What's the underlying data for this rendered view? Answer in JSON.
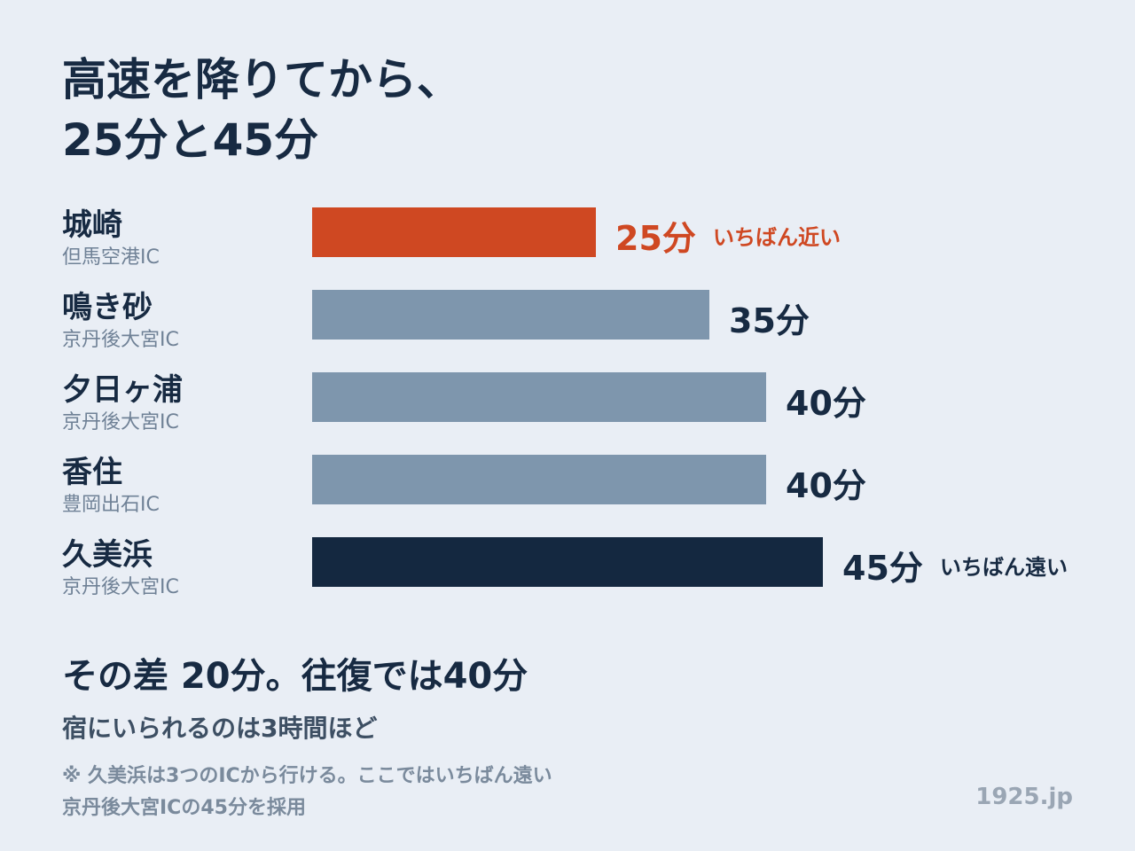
{
  "title": {
    "line1": "高速を降りてから、",
    "line2": "25分と45分"
  },
  "chart_data": {
    "type": "bar",
    "orientation": "horizontal",
    "categories": [
      "城崎",
      "鳴き砂",
      "夕日ヶ浦",
      "香住",
      "久美浜"
    ],
    "sublabels": [
      "但馬空港IC",
      "京丹後大宮IC",
      "京丹後大宮IC",
      "豊岡出石IC",
      "京丹後大宮IC"
    ],
    "values": [
      25,
      35,
      40,
      40,
      45
    ],
    "value_labels": [
      "25分",
      "35分",
      "40分",
      "40分",
      "45分"
    ],
    "notes": [
      "いちばん近い",
      "",
      "",
      "",
      "いちばん遠い"
    ],
    "unit": "分",
    "xlim": [
      0,
      57
    ],
    "grid": false,
    "colors": {
      "nearest": "#cf4822",
      "middle": "#7e96ad",
      "farthest": "#142840",
      "value_text": "#172a42"
    }
  },
  "summary": {
    "headline": "その差 20分。往復では40分",
    "sub": "宿にいられるのは3時間ほど"
  },
  "footnote": {
    "line1": "※ 久美浜は3つのICから行ける。ここではいちばん遠い",
    "line2": "京丹後大宮ICの45分を採用"
  },
  "site": "1925.jp"
}
